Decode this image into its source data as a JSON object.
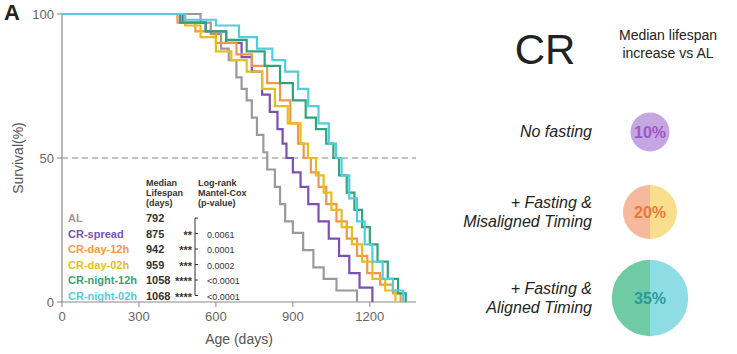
{
  "chart_data": [
    {
      "type": "step",
      "panel_label": "A",
      "x_label": "Age (days)",
      "y_label": "Survival(%)",
      "xlim": [
        0,
        1380
      ],
      "xticks": [
        0,
        300,
        600,
        900,
        1200
      ],
      "ylim": [
        0,
        100
      ],
      "yticks": [
        0,
        50,
        100
      ],
      "hline": 50,
      "table_headers": [
        [
          "Median",
          "Lifespan",
          "(days)"
        ],
        [
          "Log-rank",
          "Mantel-Cox",
          "(p-value)"
        ]
      ],
      "series": [
        {
          "name": "AL",
          "color": "#9a9a9a",
          "median": 792,
          "x": [
            0,
            540,
            580,
            620,
            650,
            680,
            700,
            720,
            740,
            760,
            785,
            800,
            830,
            850,
            870,
            900,
            940,
            980,
            1020,
            1070,
            1150
          ],
          "values": [
            100,
            97,
            93,
            88,
            84,
            78,
            74,
            70,
            64,
            58,
            52,
            46,
            40,
            34,
            28,
            24,
            18,
            12,
            8,
            4,
            0
          ]
        },
        {
          "name": "CR-spread",
          "color": "#7b4fb5",
          "median": 875,
          "stars": "**",
          "p_value": "0.0061",
          "x": [
            0,
            470,
            560,
            640,
            700,
            740,
            780,
            810,
            840,
            860,
            875,
            900,
            930,
            960,
            1000,
            1040,
            1080,
            1120,
            1160,
            1210
          ],
          "values": [
            100,
            97,
            94,
            90,
            85,
            80,
            72,
            66,
            60,
            55,
            50,
            45,
            40,
            34,
            28,
            22,
            16,
            10,
            5,
            0
          ]
        },
        {
          "name": "CR-day-12h",
          "color": "#f4964a",
          "median": 942,
          "stars": "***",
          "p_value": "0.0001",
          "x": [
            0,
            450,
            520,
            600,
            680,
            740,
            800,
            850,
            890,
            920,
            942,
            970,
            1000,
            1030,
            1070,
            1110,
            1150,
            1190,
            1240,
            1290,
            1320
          ],
          "values": [
            100,
            97,
            94,
            90,
            86,
            82,
            76,
            70,
            62,
            55,
            50,
            45,
            40,
            34,
            28,
            22,
            16,
            10,
            6,
            3,
            0
          ]
        },
        {
          "name": "CR-day-02h",
          "color": "#e6bd1f",
          "median": 959,
          "stars": "***",
          "p_value": "0.0002",
          "x": [
            0,
            480,
            540,
            600,
            660,
            720,
            780,
            830,
            880,
            930,
            959,
            990,
            1020,
            1050,
            1090,
            1130,
            1170,
            1210,
            1260,
            1300
          ],
          "values": [
            100,
            96,
            92,
            87,
            84,
            80,
            74,
            68,
            62,
            55,
            50,
            44,
            38,
            32,
            26,
            20,
            14,
            8,
            4,
            0
          ]
        },
        {
          "name": "CR-night-12h",
          "color": "#2fa37c",
          "median": 1058,
          "stars": "****",
          "p_value": "<0.0001",
          "x": [
            0,
            460,
            560,
            640,
            720,
            790,
            850,
            900,
            950,
            990,
            1030,
            1058,
            1080,
            1110,
            1140,
            1170,
            1200,
            1230,
            1270,
            1310,
            1340
          ],
          "values": [
            100,
            97,
            94,
            91,
            87,
            82,
            76,
            70,
            64,
            60,
            55,
            50,
            44,
            38,
            32,
            26,
            20,
            14,
            8,
            3,
            0
          ]
        },
        {
          "name": "CR-night-02h",
          "color": "#4fcfdc",
          "median": 1068,
          "stars": "****",
          "p_value": "<0.0001",
          "x": [
            0,
            480,
            600,
            690,
            760,
            820,
            870,
            920,
            960,
            1000,
            1040,
            1068,
            1090,
            1120,
            1150,
            1180,
            1210,
            1250,
            1290,
            1330
          ],
          "values": [
            100,
            98,
            96,
            92,
            88,
            84,
            80,
            74,
            68,
            62,
            55,
            50,
            44,
            36,
            28,
            20,
            14,
            8,
            4,
            0
          ]
        }
      ]
    },
    {
      "type": "circle",
      "title": "CR",
      "subtitle": [
        "Median lifespan",
        "increase vs AL"
      ],
      "categories": [
        [
          "No fasting"
        ],
        [
          "+ Fasting &",
          "Misaligned Timing"
        ],
        [
          "+ Fasting &",
          "Aligned Timing"
        ]
      ],
      "values": [
        10,
        20,
        35
      ],
      "value_labels": [
        "10%",
        "20%",
        "35%"
      ],
      "data_labels": true,
      "colors": [
        [
          "#c6a6e0"
        ],
        [
          "#f6b99c",
          "#f9de8e"
        ],
        [
          "#6fcba3",
          "#8edde4"
        ]
      ]
    }
  ]
}
